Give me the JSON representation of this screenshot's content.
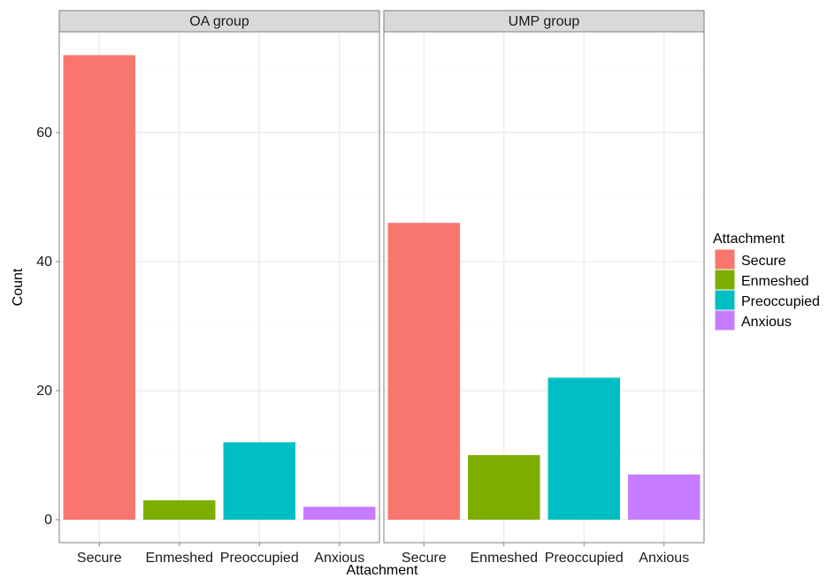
{
  "chart_data": {
    "type": "bar",
    "xlabel": "Attachment",
    "ylabel": "Count",
    "ylim": [
      0,
      75
    ],
    "yticks": [
      0,
      20,
      40,
      60
    ],
    "grid": true,
    "legend_placement": "right",
    "legend_title": "Attachment",
    "categories": [
      "Secure",
      "Enmeshed",
      "Preoccupied",
      "Anxious"
    ],
    "colors": [
      "#F8766D",
      "#7CAE00",
      "#00BFC4",
      "#C77CFF"
    ],
    "panels": [
      {
        "name": "OA group",
        "values": [
          72,
          3,
          12,
          2
        ]
      },
      {
        "name": "UMP group",
        "values": [
          46,
          10,
          22,
          7
        ]
      }
    ]
  }
}
